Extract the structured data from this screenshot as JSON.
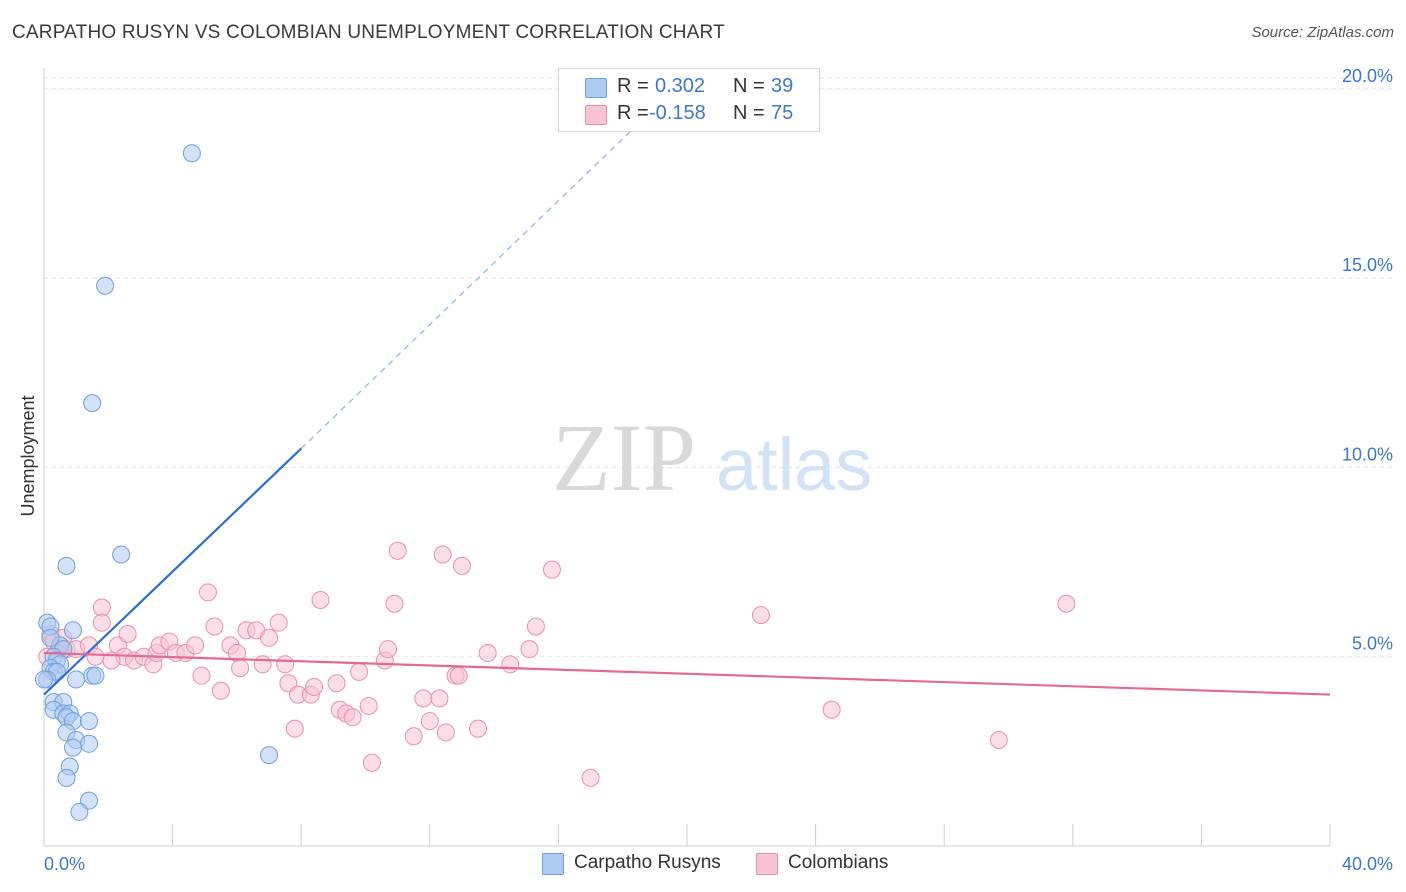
{
  "title": "CARPATHO RUSYN VS COLOMBIAN UNEMPLOYMENT CORRELATION CHART",
  "source": "Source: ZipAtlas.com",
  "watermark": {
    "zip": "ZIP",
    "atlas": "atlas"
  },
  "legend": {
    "rows": [
      {
        "r_label": "R =",
        "r_value": "0.302",
        "n_label": "N =",
        "n_value": "39"
      },
      {
        "r_label": "R =",
        "r_value": "-0.158",
        "n_label": "N =",
        "n_value": "75"
      }
    ]
  },
  "bottom_legend": {
    "series1": "Carpatho Rusyns",
    "series2": "Colombians"
  },
  "colors": {
    "blue_fill": "#aecbf2",
    "blue_stroke": "#6f9fdc",
    "blue_line": "#2d6fd0",
    "pink_fill": "#f7c3d3",
    "pink_stroke": "#ec8fab",
    "pink_line": "#e26a97",
    "tick_text": "#3f77c9",
    "grid": "#e3e3e3"
  },
  "chart_data": {
    "type": "scatter",
    "title": "CARPATHO RUSYN VS COLOMBIAN UNEMPLOYMENT CORRELATION CHART",
    "xlabel": "",
    "ylabel": "Unemployment",
    "xlim": [
      0,
      40
    ],
    "ylim": [
      0,
      20.5
    ],
    "x_tick_labels": [
      "0.0%",
      "40.0%"
    ],
    "y_ticks": [
      5,
      10,
      15,
      20
    ],
    "y_tick_labels": [
      "5.0%",
      "10.0%",
      "15.0%",
      "20.0%"
    ],
    "series": [
      {
        "name": "Carpatho Rusyns",
        "r": 0.302,
        "n": 39,
        "trend": {
          "x0": 0,
          "y0": 4.0,
          "x1": 8.0,
          "y1": 10.5,
          "dash_to_x": 19.0,
          "dash_to_y": 19.5
        },
        "points": [
          [
            4.6,
            18.3
          ],
          [
            1.9,
            14.8
          ],
          [
            1.5,
            11.7
          ],
          [
            2.4,
            7.7
          ],
          [
            0.7,
            7.4
          ],
          [
            0.1,
            5.9
          ],
          [
            0.2,
            5.8
          ],
          [
            0.9,
            5.7
          ],
          [
            0.5,
            5.3
          ],
          [
            0.6,
            5.2
          ],
          [
            0.3,
            5.0
          ],
          [
            0.4,
            4.9
          ],
          [
            0.5,
            4.8
          ],
          [
            0.2,
            4.7
          ],
          [
            0.3,
            4.6
          ],
          [
            0.4,
            4.6
          ],
          [
            1.5,
            4.5
          ],
          [
            1.6,
            4.5
          ],
          [
            1.0,
            4.4
          ],
          [
            0.1,
            4.4
          ],
          [
            0.3,
            3.8
          ],
          [
            0.6,
            3.8
          ],
          [
            0.3,
            3.6
          ],
          [
            0.6,
            3.5
          ],
          [
            0.8,
            3.5
          ],
          [
            0.7,
            3.4
          ],
          [
            0.9,
            3.3
          ],
          [
            1.4,
            3.3
          ],
          [
            0.7,
            3.0
          ],
          [
            1.0,
            2.8
          ],
          [
            1.4,
            2.7
          ],
          [
            0.9,
            2.6
          ],
          [
            7.0,
            2.4
          ],
          [
            0.8,
            2.1
          ],
          [
            0.7,
            1.8
          ],
          [
            1.4,
            1.2
          ],
          [
            1.1,
            0.9
          ],
          [
            0.0,
            4.4
          ],
          [
            0.2,
            5.5
          ]
        ]
      },
      {
        "name": "Colombians",
        "r": -0.158,
        "n": 75,
        "trend": {
          "x0": 0,
          "y0": 5.1,
          "x1": 40,
          "y1": 4.0
        },
        "points": [
          [
            0.2,
            5.6
          ],
          [
            0.3,
            5.4
          ],
          [
            0.5,
            5.3
          ],
          [
            0.7,
            5.2
          ],
          [
            0.4,
            5.1
          ],
          [
            1.0,
            5.2
          ],
          [
            1.4,
            5.3
          ],
          [
            1.6,
            5.0
          ],
          [
            1.8,
            6.3
          ],
          [
            1.8,
            5.9
          ],
          [
            2.3,
            5.3
          ],
          [
            2.5,
            5.0
          ],
          [
            2.6,
            5.6
          ],
          [
            2.8,
            4.9
          ],
          [
            3.1,
            5.0
          ],
          [
            3.4,
            4.8
          ],
          [
            3.5,
            5.1
          ],
          [
            3.6,
            5.3
          ],
          [
            3.9,
            5.4
          ],
          [
            4.1,
            5.1
          ],
          [
            4.4,
            5.1
          ],
          [
            4.7,
            5.3
          ],
          [
            4.9,
            4.5
          ],
          [
            5.1,
            6.7
          ],
          [
            5.3,
            5.8
          ],
          [
            5.5,
            4.1
          ],
          [
            5.8,
            5.3
          ],
          [
            6.0,
            5.1
          ],
          [
            6.1,
            4.7
          ],
          [
            6.3,
            5.7
          ],
          [
            6.6,
            5.7
          ],
          [
            6.8,
            4.8
          ],
          [
            7.0,
            5.5
          ],
          [
            7.3,
            5.9
          ],
          [
            7.5,
            4.8
          ],
          [
            7.6,
            4.3
          ],
          [
            7.8,
            3.1
          ],
          [
            7.9,
            4.0
          ],
          [
            8.3,
            4.0
          ],
          [
            8.4,
            4.2
          ],
          [
            8.6,
            6.5
          ],
          [
            9.1,
            4.3
          ],
          [
            9.2,
            3.6
          ],
          [
            9.4,
            3.5
          ],
          [
            9.6,
            3.4
          ],
          [
            9.8,
            4.6
          ],
          [
            10.1,
            3.7
          ],
          [
            10.2,
            2.2
          ],
          [
            10.6,
            4.9
          ],
          [
            10.7,
            5.2
          ],
          [
            10.9,
            6.4
          ],
          [
            11.0,
            7.8
          ],
          [
            11.5,
            2.9
          ],
          [
            11.8,
            3.9
          ],
          [
            12.0,
            3.3
          ],
          [
            12.3,
            3.9
          ],
          [
            12.4,
            7.7
          ],
          [
            12.5,
            3.0
          ],
          [
            12.8,
            4.5
          ],
          [
            12.9,
            4.5
          ],
          [
            13.0,
            7.4
          ],
          [
            13.5,
            3.1
          ],
          [
            13.8,
            5.1
          ],
          [
            14.5,
            4.8
          ],
          [
            15.1,
            5.2
          ],
          [
            15.3,
            5.8
          ],
          [
            15.8,
            7.3
          ],
          [
            17.0,
            1.8
          ],
          [
            22.3,
            6.1
          ],
          [
            24.5,
            3.6
          ],
          [
            29.7,
            2.8
          ],
          [
            31.8,
            6.4
          ],
          [
            0.1,
            5.0
          ],
          [
            0.6,
            5.5
          ],
          [
            2.1,
            4.9
          ]
        ]
      }
    ]
  }
}
